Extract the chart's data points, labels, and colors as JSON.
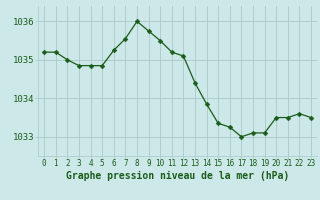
{
  "x": [
    0,
    1,
    2,
    3,
    4,
    5,
    6,
    7,
    8,
    9,
    10,
    11,
    12,
    13,
    14,
    15,
    16,
    17,
    18,
    19,
    20,
    21,
    22,
    23
  ],
  "y": [
    1035.2,
    1035.2,
    1035.0,
    1034.85,
    1034.85,
    1034.85,
    1035.25,
    1035.55,
    1036.0,
    1035.75,
    1035.5,
    1035.2,
    1035.1,
    1034.4,
    1033.85,
    1033.35,
    1033.25,
    1033.0,
    1033.1,
    1033.1,
    1033.5,
    1033.5,
    1033.6,
    1033.5
  ],
  "line_color": "#1a5c1a",
  "marker": "D",
  "marker_size": 2.5,
  "bg_color": "#cce8e8",
  "grid_color": "#aac8c8",
  "label_text_color": "#1a5c1a",
  "xlabel": "Graphe pression niveau de la mer (hPa)",
  "ylim": [
    1032.5,
    1036.4
  ],
  "yticks": [
    1033,
    1034,
    1035,
    1036
  ],
  "xticks": [
    0,
    1,
    2,
    3,
    4,
    5,
    6,
    7,
    8,
    9,
    10,
    11,
    12,
    13,
    14,
    15,
    16,
    17,
    18,
    19,
    20,
    21,
    22,
    23
  ],
  "tick_fontsize": 5.5,
  "xlabel_fontsize": 7.0,
  "ytick_fontsize": 6.5
}
